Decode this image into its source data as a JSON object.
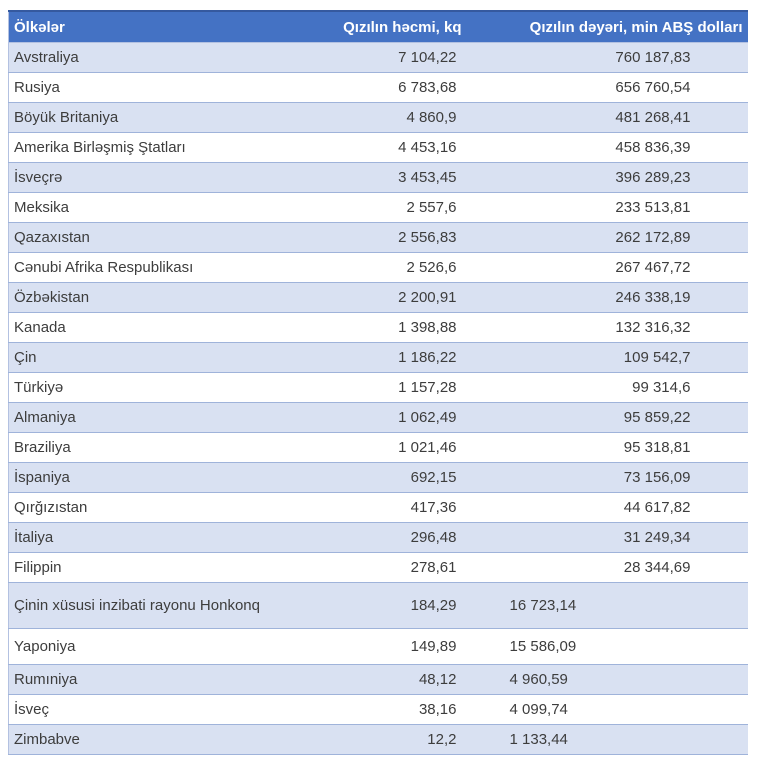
{
  "table": {
    "columns": [
      {
        "label": "Ölkələr"
      },
      {
        "label": "Qızılın həcmi, kq"
      },
      {
        "label": "Qızılın dəyəri, min ABŞ dolları"
      }
    ],
    "rows": [
      {
        "country": "Avstraliya",
        "volume": "7 104,22",
        "value": "760 187,83"
      },
      {
        "country": "Rusiya",
        "volume": "6 783,68",
        "value": "656 760,54"
      },
      {
        "country": "Böyük Britaniya",
        "volume": "4 860,9",
        "value": "481 268,41"
      },
      {
        "country": "Amerika Birləşmiş Ştatları",
        "volume": "4 453,16",
        "value": "458 836,39"
      },
      {
        "country": "İsveçrə",
        "volume": "3 453,45",
        "value": "396 289,23"
      },
      {
        "country": "Meksika",
        "volume": "2 557,6",
        "value": "233 513,81"
      },
      {
        "country": "Qazaxıstan",
        "volume": "2 556,83",
        "value": "262 172,89"
      },
      {
        "country": "Cənubi Afrika Respublikası",
        "volume": "2 526,6",
        "value": "267 467,72"
      },
      {
        "country": "Özbəkistan",
        "volume": "2 200,91",
        "value": "246 338,19"
      },
      {
        "country": "Kanada",
        "volume": "1 398,88",
        "value": "132 316,32"
      },
      {
        "country": "Çin",
        "volume": "1 186,22",
        "value": "109 542,7"
      },
      {
        "country": "Türkiyə",
        "volume": "1 157,28",
        "value": "99 314,6"
      },
      {
        "country": "Almaniya",
        "volume": "1 062,49",
        "value": "95 859,22"
      },
      {
        "country": "Braziliya",
        "volume": "1 021,46",
        "value": "95 318,81"
      },
      {
        "country": "İspaniya",
        "volume": "692,15",
        "value": "73 156,09"
      },
      {
        "country": "Qırğızıstan",
        "volume": "417,36",
        "value": "44 617,82"
      },
      {
        "country": "İtaliya",
        "volume": "296,48",
        "value": "31 249,34"
      },
      {
        "country": "Filippin",
        "volume": "278,61",
        "value": "28 344,69"
      },
      {
        "country": "Çinin xüsusi inzibati rayonu Honkonq",
        "volume": "184,29",
        "value": "16 723,14"
      },
      {
        "country": "Yaponiya",
        "volume": "149,89",
        "value": "15 586,09"
      },
      {
        "country": "Rumıniya",
        "volume": "48,12",
        "value": "4 960,59"
      },
      {
        "country": "İsveç",
        "volume": "38,16",
        "value": "4 099,74"
      },
      {
        "country": "Zimbabve",
        "volume": "12,2",
        "value": "1 133,44"
      }
    ],
    "colors": {
      "header_bg": "#4472c4",
      "header_text": "#ffffff",
      "header_top_border": "#35599f",
      "row_alt_bg": "#d9e1f2",
      "row_bg": "#ffffff",
      "row_border": "#9fb3da",
      "text": "#3d3d3d"
    }
  }
}
